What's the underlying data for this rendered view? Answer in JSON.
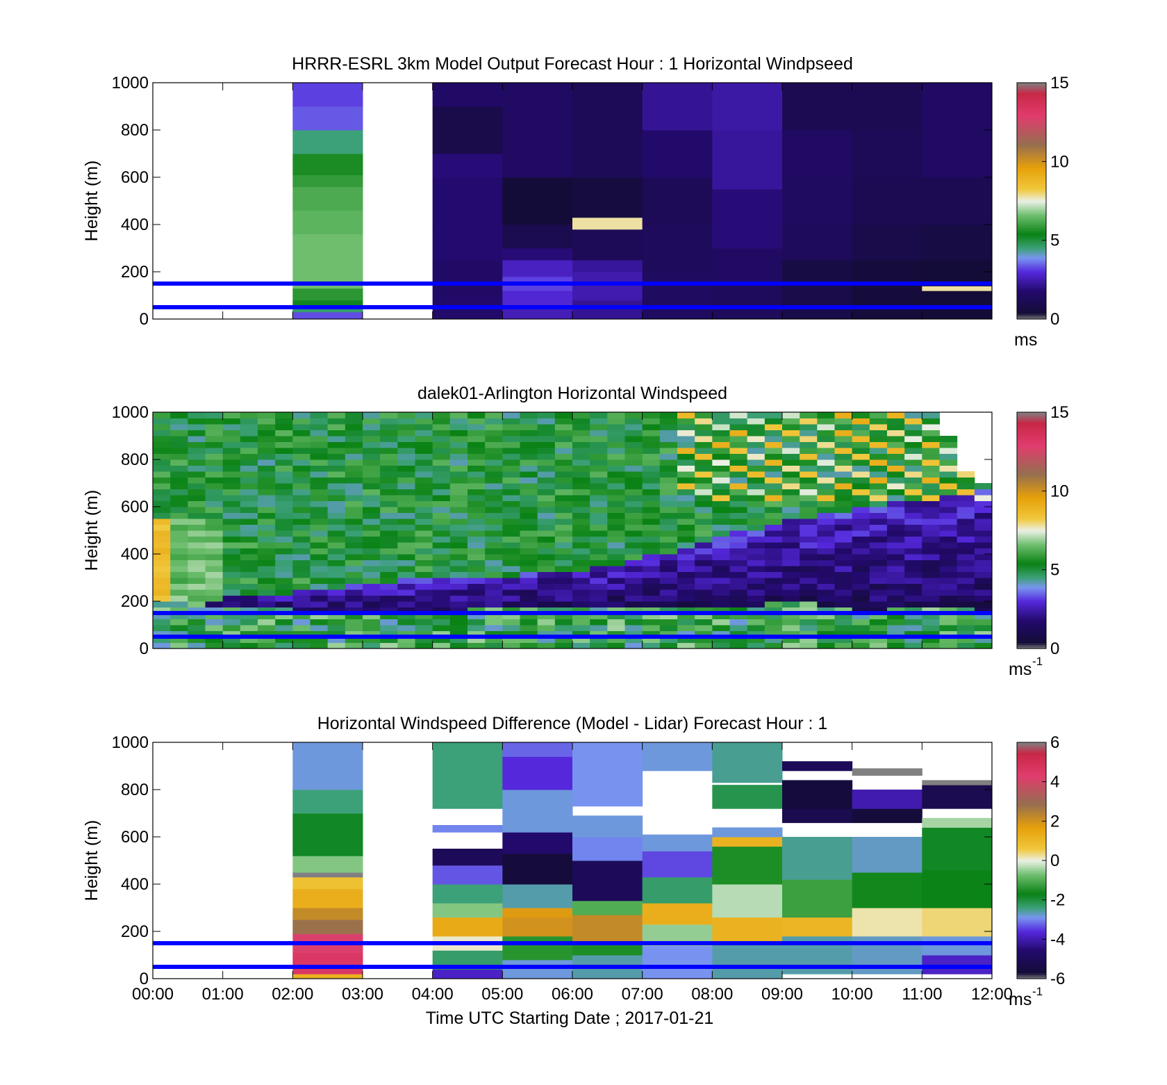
{
  "figure": {
    "xlabel": "Time UTC  Starting Date ; 2017-01-21",
    "x_ticks": [
      "00:00",
      "01:00",
      "02:00",
      "03:00",
      "04:00",
      "05:00",
      "06:00",
      "07:00",
      "08:00",
      "09:00",
      "10:00",
      "11:00",
      "12:00"
    ]
  },
  "chart_data": [
    {
      "type": "heatmap",
      "title": "HRRR-ESRL 3km Model Output   Forecast Hour : 1 Horizontal Windpseed",
      "ylabel": "Height (m)",
      "xlim": [
        0,
        12
      ],
      "ylim": [
        0,
        1000
      ],
      "y_ticks": [
        "0",
        "200",
        "400",
        "600",
        "800",
        "1000"
      ],
      "colorbar": {
        "min": 0,
        "max": 15,
        "ticks": [
          "0",
          "5",
          "10",
          "15"
        ],
        "unit": "ms",
        "unit_sup": ""
      },
      "reference_lines_m": [
        50,
        150
      ],
      "reference_line_color": "#0000ff",
      "columns": [
        {
          "t": 2,
          "segments": [
            {
              "y0": 0,
              "y1": 30,
              "v": 3.3
            },
            {
              "y0": 30,
              "y1": 60,
              "v": 4.6
            },
            {
              "y0": 60,
              "y1": 80,
              "v": 5.3
            },
            {
              "y0": 80,
              "y1": 130,
              "v": 5.8
            },
            {
              "y0": 130,
              "y1": 360,
              "v": 6.6
            },
            {
              "y0": 360,
              "y1": 460,
              "v": 6.4
            },
            {
              "y0": 460,
              "y1": 560,
              "v": 6.2
            },
            {
              "y0": 560,
              "y1": 610,
              "v": 5.9
            },
            {
              "y0": 610,
              "y1": 700,
              "v": 5.6
            },
            {
              "y0": 700,
              "y1": 800,
              "v": 4.5
            },
            {
              "y0": 800,
              "y1": 900,
              "v": 3.4
            },
            {
              "y0": 900,
              "y1": 1000,
              "v": 3.2
            }
          ]
        },
        {
          "t": 4,
          "segments": [
            {
              "y0": 0,
              "y1": 100,
              "v": 1.7
            },
            {
              "y0": 100,
              "y1": 250,
              "v": 1.6
            },
            {
              "y0": 250,
              "y1": 400,
              "v": 1.8
            },
            {
              "y0": 400,
              "y1": 600,
              "v": 1.8
            },
            {
              "y0": 600,
              "y1": 700,
              "v": 1.9
            },
            {
              "y0": 700,
              "y1": 900,
              "v": 0.9
            },
            {
              "y0": 900,
              "y1": 1000,
              "v": 1.6
            }
          ]
        },
        {
          "t": 5,
          "segments": [
            {
              "y0": 0,
              "y1": 60,
              "v": 2.6
            },
            {
              "y0": 60,
              "y1": 120,
              "v": 2.9
            },
            {
              "y0": 120,
              "y1": 180,
              "v": 3.2
            },
            {
              "y0": 180,
              "y1": 250,
              "v": 2.7
            },
            {
              "y0": 250,
              "y1": 300,
              "v": 1.9
            },
            {
              "y0": 300,
              "y1": 400,
              "v": 1.0
            },
            {
              "y0": 400,
              "y1": 600,
              "v": 0.4
            },
            {
              "y0": 600,
              "y1": 1000,
              "v": 1.5
            }
          ]
        },
        {
          "t": 6,
          "segments": [
            {
              "y0": 0,
              "y1": 80,
              "v": 2.2
            },
            {
              "y0": 80,
              "y1": 200,
              "v": 2.5
            },
            {
              "y0": 200,
              "y1": 250,
              "v": 2.3
            },
            {
              "y0": 250,
              "y1": 380,
              "v": 1.2
            },
            {
              "y0": 380,
              "y1": 430,
              "v": 7.8
            },
            {
              "y0": 430,
              "y1": 600,
              "v": 0.6
            },
            {
              "y0": 600,
              "y1": 1000,
              "v": 1.2
            }
          ]
        },
        {
          "t": 7,
          "segments": [
            {
              "y0": 0,
              "y1": 200,
              "v": 1.4
            },
            {
              "y0": 200,
              "y1": 400,
              "v": 1.3
            },
            {
              "y0": 400,
              "y1": 600,
              "v": 1.2
            },
            {
              "y0": 600,
              "y1": 800,
              "v": 1.7
            },
            {
              "y0": 800,
              "y1": 1000,
              "v": 2.2
            }
          ]
        },
        {
          "t": 8,
          "segments": [
            {
              "y0": 0,
              "y1": 150,
              "v": 1.3
            },
            {
              "y0": 150,
              "y1": 300,
              "v": 1.5
            },
            {
              "y0": 300,
              "y1": 550,
              "v": 1.9
            },
            {
              "y0": 550,
              "y1": 800,
              "v": 2.3
            },
            {
              "y0": 800,
              "y1": 1000,
              "v": 2.4
            }
          ]
        },
        {
          "t": 9,
          "segments": [
            {
              "y0": 0,
              "y1": 150,
              "v": 0.9
            },
            {
              "y0": 150,
              "y1": 250,
              "v": 0.7
            },
            {
              "y0": 250,
              "y1": 400,
              "v": 1.3
            },
            {
              "y0": 400,
              "y1": 600,
              "v": 1.4
            },
            {
              "y0": 600,
              "y1": 800,
              "v": 1.5
            },
            {
              "y0": 800,
              "y1": 1000,
              "v": 1.1
            }
          ]
        },
        {
          "t": 10,
          "segments": [
            {
              "y0": 0,
              "y1": 150,
              "v": 0.5
            },
            {
              "y0": 150,
              "y1": 250,
              "v": 0.5
            },
            {
              "y0": 250,
              "y1": 400,
              "v": 0.9
            },
            {
              "y0": 400,
              "y1": 600,
              "v": 1.1
            },
            {
              "y0": 600,
              "y1": 800,
              "v": 1.2
            },
            {
              "y0": 800,
              "y1": 1000,
              "v": 1.1
            }
          ]
        },
        {
          "t": 11,
          "segments": [
            {
              "y0": 0,
              "y1": 120,
              "v": 0.4
            },
            {
              "y0": 120,
              "y1": 140,
              "v": 7.8
            },
            {
              "y0": 140,
              "y1": 250,
              "v": 0.4
            },
            {
              "y0": 250,
              "y1": 400,
              "v": 0.7
            },
            {
              "y0": 400,
              "y1": 600,
              "v": 1.1
            },
            {
              "y0": 600,
              "y1": 800,
              "v": 1.5
            },
            {
              "y0": 800,
              "y1": 1000,
              "v": 1.5
            }
          ]
        }
      ]
    },
    {
      "type": "heatmap",
      "title": "dalek01-Arlington  Horizontal Windspeed",
      "ylabel": "Height (m)",
      "xlim": [
        0,
        12
      ],
      "ylim": [
        0,
        1000
      ],
      "y_ticks": [
        "0",
        "200",
        "400",
        "600",
        "800",
        "1000"
      ],
      "colorbar": {
        "min": 0,
        "max": 15,
        "ticks": [
          "0",
          "5",
          "10",
          "15"
        ],
        "unit": "ms",
        "unit_sup": "-1"
      },
      "reference_lines_m": [
        50,
        150
      ],
      "reference_line_color": "#0000ff",
      "time_step_h": 0.25,
      "profile_note": "values approximated from colors, 48 profiles x 20 layers",
      "top_of_data_m": [
        1000,
        1000,
        1000,
        1000,
        1000,
        1000,
        1000,
        1000,
        1000,
        1000,
        1000,
        1000,
        1000,
        1000,
        1000,
        1000,
        1000,
        1000,
        1000,
        1000,
        1000,
        1000,
        1000,
        1000,
        1000,
        1000,
        1000,
        1000,
        1000,
        1000,
        1000,
        1000,
        1000,
        1000,
        1000,
        1000,
        1000,
        1000,
        1000,
        1000,
        1000,
        1000,
        1000,
        1000,
        1000,
        880,
        740,
        700
      ],
      "jet": {
        "t": [
          0,
          1,
          2,
          3,
          4,
          5,
          6,
          7,
          8,
          9,
          10,
          11,
          12
        ],
        "low_m": [
          200,
          180,
          160,
          150,
          160,
          170,
          170,
          180,
          170,
          200,
          160,
          170,
          160
        ],
        "high_m": [
          220,
          220,
          240,
          280,
          300,
          310,
          330,
          390,
          480,
          540,
          600,
          650,
          690
        ]
      },
      "surface_speed": 5.5,
      "upper_speed": 5.3,
      "jet_speed": 1.3,
      "upper_fast_region": {
        "t0": 7.5,
        "t1": 12,
        "y0": 620,
        "y1": 1000,
        "v": 8.2
      },
      "early_fast_region": {
        "t0": 0,
        "t1": 1,
        "y0": 200,
        "y1": 560,
        "v": 8.5
      }
    },
    {
      "type": "heatmap",
      "title": "Horizontal Windspeed Difference (Model - Lidar) Forecast Hour : 1",
      "ylabel": "Height (m)",
      "xlim": [
        0,
        12
      ],
      "ylim": [
        0,
        1000
      ],
      "y_ticks": [
        "0",
        "200",
        "400",
        "600",
        "800",
        "1000"
      ],
      "colorbar": {
        "min": -6,
        "max": 6,
        "ticks": [
          "-6",
          "-4",
          "-2",
          "0",
          "2",
          "4",
          "6"
        ],
        "unit": "ms",
        "unit_sup": "-1"
      },
      "reference_lines_m": [
        50,
        150
      ],
      "reference_line_color": "#0000ff",
      "columns": [
        {
          "t": 2,
          "segments": [
            {
              "y0": 0,
              "y1": 20,
              "v": 1.2
            },
            {
              "y0": 20,
              "y1": 110,
              "v": 4.6
            },
            {
              "y0": 110,
              "y1": 190,
              "v": 4.2
            },
            {
              "y0": 190,
              "y1": 250,
              "v": 2.8
            },
            {
              "y0": 250,
              "y1": 300,
              "v": 2.2
            },
            {
              "y0": 300,
              "y1": 380,
              "v": 1.3
            },
            {
              "y0": 380,
              "y1": 430,
              "v": 0.8
            },
            {
              "y0": 430,
              "y1": 450,
              "v": 6.0
            },
            {
              "y0": 450,
              "y1": 520,
              "v": -0.6
            },
            {
              "y0": 520,
              "y1": 700,
              "v": -1.8
            },
            {
              "y0": 700,
              "y1": 800,
              "v": -2.4
            },
            {
              "y0": 800,
              "y1": 1000,
              "v": -2.8
            }
          ]
        },
        {
          "t": 4,
          "segments": [
            {
              "y0": 0,
              "y1": 40,
              "v": -3.8
            },
            {
              "y0": 40,
              "y1": 120,
              "v": -2.3
            },
            {
              "y0": 120,
              "y1": 180,
              "v": 0.1
            },
            {
              "y0": 180,
              "y1": 260,
              "v": 1.4
            },
            {
              "y0": 260,
              "y1": 320,
              "v": -0.6
            },
            {
              "y0": 320,
              "y1": 400,
              "v": -2.4
            },
            {
              "y0": 400,
              "y1": 480,
              "v": -3.3
            },
            {
              "y0": 480,
              "y1": 550,
              "v": -5.0
            },
            {
              "y0": 550,
              "y1": 600,
              "v": "null"
            },
            {
              "y0": 620,
              "y1": 650,
              "v": -3.0
            },
            {
              "y0": 720,
              "y1": 1000,
              "v": -2.4
            }
          ]
        },
        {
          "t": 5,
          "segments": [
            {
              "y0": 0,
              "y1": 80,
              "v": -2.8
            },
            {
              "y0": 80,
              "y1": 180,
              "v": -1.4
            },
            {
              "y0": 180,
              "y1": 260,
              "v": 2.0
            },
            {
              "y0": 260,
              "y1": 300,
              "v": 1.8
            },
            {
              "y0": 300,
              "y1": 400,
              "v": -2.6
            },
            {
              "y0": 400,
              "y1": 530,
              "v": -5.6
            },
            {
              "y0": 530,
              "y1": 620,
              "v": -4.6
            },
            {
              "y0": 620,
              "y1": 800,
              "v": -2.8
            },
            {
              "y0": 800,
              "y1": 940,
              "v": -3.6
            },
            {
              "y0": 940,
              "y1": 1000,
              "v": -3.2
            }
          ]
        },
        {
          "t": 6,
          "segments": [
            {
              "y0": 0,
              "y1": 100,
              "v": -2.6
            },
            {
              "y0": 100,
              "y1": 150,
              "v": -1.5
            },
            {
              "y0": 150,
              "y1": 270,
              "v": 2.2
            },
            {
              "y0": 270,
              "y1": 330,
              "v": -1.0
            },
            {
              "y0": 330,
              "y1": 500,
              "v": -5.0
            },
            {
              "y0": 500,
              "y1": 600,
              "v": -3.0
            },
            {
              "y0": 600,
              "y1": 690,
              "v": -2.8
            },
            {
              "y0": 730,
              "y1": 1000,
              "v": -2.9
            }
          ]
        },
        {
          "t": 7,
          "segments": [
            {
              "y0": 0,
              "y1": 140,
              "v": -2.9
            },
            {
              "y0": 140,
              "y1": 230,
              "v": -0.5
            },
            {
              "y0": 230,
              "y1": 320,
              "v": 1.3
            },
            {
              "y0": 320,
              "y1": 430,
              "v": -2.3
            },
            {
              "y0": 430,
              "y1": 540,
              "v": -3.4
            },
            {
              "y0": 540,
              "y1": 610,
              "v": -2.8
            },
            {
              "y0": 880,
              "y1": 1000,
              "v": -2.8
            }
          ]
        },
        {
          "t": 8,
          "segments": [
            {
              "y0": 0,
              "y1": 160,
              "v": -2.6
            },
            {
              "y0": 160,
              "y1": 260,
              "v": 1.2
            },
            {
              "y0": 260,
              "y1": 400,
              "v": -0.3
            },
            {
              "y0": 400,
              "y1": 560,
              "v": -1.5
            },
            {
              "y0": 560,
              "y1": 600,
              "v": 1.2
            },
            {
              "y0": 600,
              "y1": 640,
              "v": -2.8
            },
            {
              "y0": 720,
              "y1": 820,
              "v": -2.1
            },
            {
              "y0": 830,
              "y1": 1000,
              "v": -2.5
            }
          ]
        },
        {
          "t": 9,
          "segments": [
            {
              "y0": 20,
              "y1": 180,
              "v": -2.6
            },
            {
              "y0": 180,
              "y1": 260,
              "v": 1.1
            },
            {
              "y0": 260,
              "y1": 420,
              "v": -1.2
            },
            {
              "y0": 420,
              "y1": 600,
              "v": -2.5
            },
            {
              "y0": 660,
              "y1": 720,
              "v": -5.2
            },
            {
              "y0": 720,
              "y1": 840,
              "v": -5.6
            },
            {
              "y0": 880,
              "y1": 920,
              "v": -5.0
            }
          ]
        },
        {
          "t": 10,
          "segments": [
            {
              "y0": 20,
              "y1": 180,
              "v": -2.7
            },
            {
              "y0": 180,
              "y1": 300,
              "v": 0.2
            },
            {
              "y0": 300,
              "y1": 450,
              "v": -1.6
            },
            {
              "y0": 450,
              "y1": 600,
              "v": -2.7
            },
            {
              "y0": 660,
              "y1": 720,
              "v": -5.6
            },
            {
              "y0": 720,
              "y1": 800,
              "v": -4.0
            },
            {
              "y0": 860,
              "y1": 890,
              "v": 6.0
            }
          ]
        },
        {
          "t": 11,
          "segments": [
            {
              "y0": 20,
              "y1": 100,
              "v": -3.8
            },
            {
              "y0": 100,
              "y1": 180,
              "v": -2.8
            },
            {
              "y0": 180,
              "y1": 300,
              "v": 0.4
            },
            {
              "y0": 300,
              "y1": 460,
              "v": -1.7
            },
            {
              "y0": 460,
              "y1": 640,
              "v": -1.8
            },
            {
              "y0": 640,
              "y1": 680,
              "v": -0.4
            },
            {
              "y0": 720,
              "y1": 820,
              "v": -5.2
            },
            {
              "y0": 820,
              "y1": 840,
              "v": 6.0
            }
          ]
        }
      ]
    }
  ]
}
